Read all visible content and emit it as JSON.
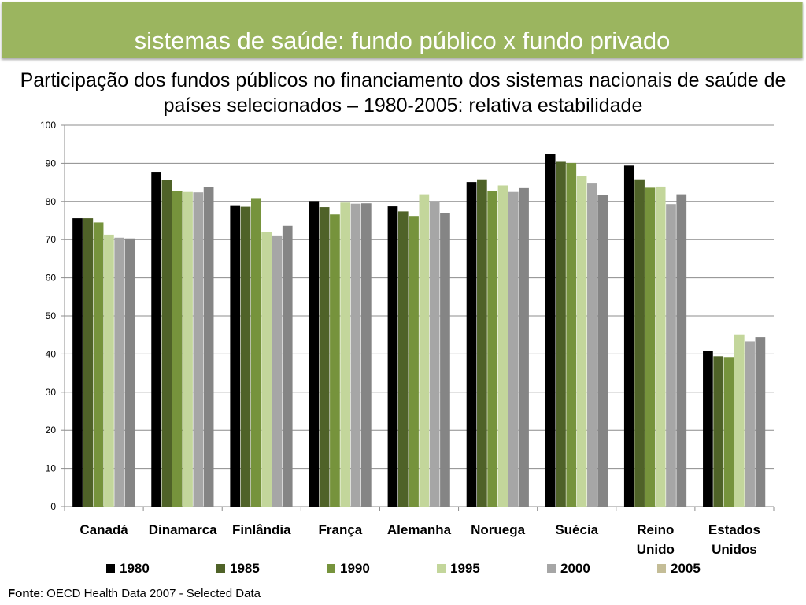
{
  "header": {
    "title": "sistemas de saúde: fundo público x fundo privado"
  },
  "subtitle": "Participação dos fundos públicos no financiamento dos sistemas nacionais de saúde de países selecionados – 1980-2005: relativa estabilidade",
  "chart_data": {
    "type": "bar",
    "title": "",
    "xlabel": "",
    "ylabel": "",
    "ylim": [
      0,
      100
    ],
    "yticks": [
      0,
      10,
      20,
      30,
      40,
      50,
      60,
      70,
      80,
      90,
      100
    ],
    "grid": true,
    "legend_position": "bottom",
    "categories": [
      [
        "Canadá"
      ],
      [
        "Dinamarca"
      ],
      [
        "Finlândia"
      ],
      [
        "França"
      ],
      [
        "Alemanha"
      ],
      [
        "Noruega"
      ],
      [
        "Suécia"
      ],
      [
        "Reino",
        "Unido"
      ],
      [
        "Estados",
        "Unidos"
      ]
    ],
    "series": [
      {
        "name": "1980",
        "color": "#000000",
        "values": [
          75.6,
          87.8,
          79.0,
          80.1,
          78.7,
          85.1,
          92.5,
          89.4,
          40.8
        ]
      },
      {
        "name": "1985",
        "color": "#4f6228",
        "values": [
          75.6,
          85.6,
          78.6,
          78.5,
          77.4,
          85.8,
          90.4,
          85.8,
          39.4
        ]
      },
      {
        "name": "1990",
        "color": "#76933c",
        "values": [
          74.5,
          82.7,
          80.9,
          76.6,
          76.2,
          82.7,
          90.1,
          83.6,
          39.2
        ]
      },
      {
        "name": "1995",
        "color": "#c3d69b",
        "values": [
          71.3,
          82.5,
          71.9,
          79.7,
          81.9,
          84.2,
          86.6,
          83.9,
          45.1
        ]
      },
      {
        "name": "2000",
        "color": "#a6a6a6",
        "values": [
          70.5,
          82.4,
          71.1,
          79.4,
          80.0,
          82.5,
          84.9,
          79.3,
          43.3
        ]
      },
      {
        "name": "2005",
        "color": "#858585",
        "values": [
          70.3,
          83.7,
          73.6,
          79.5,
          76.9,
          83.5,
          81.7,
          81.9,
          44.4
        ]
      }
    ],
    "legend_swatch_colors": [
      "#000000",
      "#4f6228",
      "#76933c",
      "#c3d69b",
      "#a6a6a6",
      "#c4bd97"
    ]
  },
  "source": {
    "label": "Fonte",
    "text": ": OECD Health Data 2007 - Selected Data"
  }
}
